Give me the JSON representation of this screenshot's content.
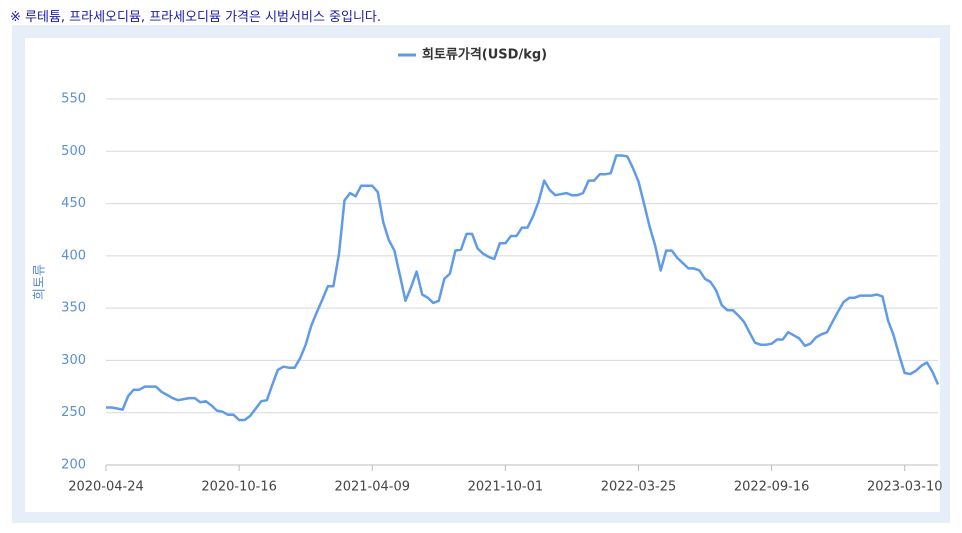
{
  "note": "※ 루테튬, 프라세오디뮴, 프라세오디뮴 가격은 시범서비스 중입니다.",
  "chart_data": {
    "type": "line",
    "y_axis_label": "희토류",
    "categories": [
      "2020-04-24",
      null,
      null,
      null,
      null,
      null,
      null,
      null,
      null,
      null,
      null,
      null,
      null,
      null,
      null,
      null,
      null,
      null,
      null,
      null,
      null,
      null,
      null,
      null,
      "2020-10-16",
      null,
      null,
      null,
      null,
      null,
      null,
      null,
      null,
      null,
      null,
      null,
      null,
      null,
      null,
      null,
      null,
      null,
      null,
      null,
      null,
      null,
      null,
      null,
      "2021-04-09",
      null,
      null,
      null,
      null,
      null,
      null,
      null,
      null,
      null,
      null,
      null,
      null,
      null,
      null,
      null,
      null,
      null,
      null,
      null,
      null,
      null,
      null,
      null,
      "2021-10-01",
      null,
      null,
      null,
      null,
      null,
      null,
      null,
      null,
      null,
      null,
      null,
      null,
      null,
      null,
      null,
      null,
      null,
      null,
      null,
      null,
      null,
      null,
      null,
      "2022-03-25",
      null,
      null,
      null,
      null,
      null,
      null,
      null,
      null,
      null,
      null,
      null,
      null,
      null,
      null,
      null,
      null,
      null,
      null,
      null,
      null,
      null,
      null,
      null,
      "2022-09-16",
      null,
      null,
      null,
      null,
      null,
      null,
      null,
      null,
      null,
      null,
      null,
      null,
      null,
      null,
      null,
      null,
      null,
      null,
      null,
      null,
      null,
      null,
      null,
      "2023-03-10",
      null,
      null,
      null,
      null,
      null,
      null
    ],
    "series": [
      {
        "name": "희토류가격(USD/kg)",
        "color": "#5f9be8",
        "values": [
          255,
          255,
          254,
          253,
          266,
          272,
          272,
          275,
          275,
          275,
          270,
          267,
          264,
          262,
          263,
          264,
          264,
          260,
          261,
          257,
          252,
          251,
          248,
          248,
          243,
          243,
          247,
          254,
          261,
          262,
          277,
          291,
          294,
          293,
          293,
          302,
          315,
          333,
          346,
          358,
          371,
          371,
          402,
          453,
          460,
          457,
          467,
          467,
          467,
          461,
          432,
          415,
          405,
          381,
          357,
          370,
          385,
          363,
          360,
          355,
          357,
          378,
          383,
          405,
          406,
          421,
          421,
          407,
          402,
          399,
          397,
          412,
          412,
          419,
          419,
          427,
          427,
          438,
          452,
          472,
          463,
          458,
          459,
          460,
          458,
          458,
          460,
          472,
          472,
          478,
          478,
          479,
          496,
          496,
          495,
          484,
          471,
          450,
          428,
          410,
          386,
          405,
          405,
          398,
          393,
          388,
          388,
          386,
          378,
          375,
          367,
          353,
          348,
          348,
          343,
          337,
          327,
          317,
          315,
          315,
          316,
          320,
          320,
          327,
          324,
          321,
          314,
          316,
          322,
          325,
          327,
          337,
          347,
          356,
          360,
          360,
          362,
          362,
          362,
          363,
          361,
          338,
          324,
          305,
          288,
          287,
          290,
          295,
          298,
          289,
          277
        ]
      }
    ],
    "ylim": [
      200,
      550
    ],
    "yticks": [
      200,
      250,
      300,
      350,
      400,
      450,
      500,
      550
    ],
    "grid": true,
    "legend": "top"
  }
}
